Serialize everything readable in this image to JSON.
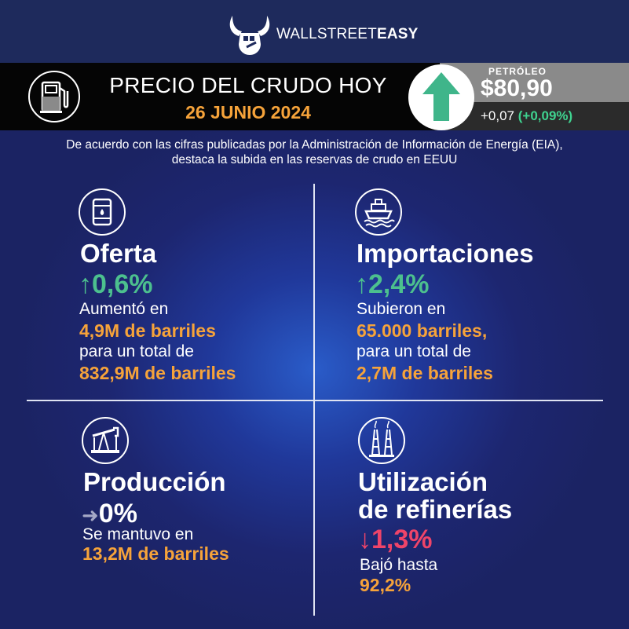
{
  "brand": {
    "name_light": "WALLSTREET",
    "name_bold": "EASY",
    "icon": "bull-fist-icon"
  },
  "header": {
    "title": "PRECIO DEL CRUDO HOY",
    "date": "26 JUNIO 2024",
    "icon": "fuel-pump-icon"
  },
  "price": {
    "label": "PETRÓLEO",
    "value": "$80,90",
    "change": "+0,07",
    "change_pct": "(+0,09%)",
    "trend_icon": "up-arrow-icon",
    "trend_color": "#3fb58a"
  },
  "intro": "De acuerdo con las cifras publicadas por la Administración de Información de Energía (EIA), destaca la subida en las reservas de crudo en EEUU",
  "quadrants": {
    "supply": {
      "icon": "oil-barrel-icon",
      "title": "Oferta",
      "arrow": "↑",
      "stat": "0,6%",
      "line1": "Aumentó en",
      "hl1": "4,9M de barriles",
      "line2": "para un total de",
      "hl2": "832,9M de barriles"
    },
    "imports": {
      "icon": "ship-icon",
      "title": "Importaciones",
      "arrow": "↑",
      "stat": "2,4%",
      "line1": "Subieron en",
      "hl1": "65.000 barriles,",
      "line2": "para un total de",
      "hl2": "2,7M de barriles"
    },
    "production": {
      "icon": "pumpjack-icon",
      "title": "Producción",
      "arrow": "➜",
      "stat": "0%",
      "line1": "Se mantuvo en",
      "hl1": "13,2M de barriles"
    },
    "refinery": {
      "icon": "refinery-icon",
      "title_line1": "Utilización",
      "title_line2": "de refinerías",
      "arrow": "↓",
      "stat": "1,3%",
      "line1": "Bajó hasta",
      "hl1": "92,2%"
    }
  },
  "colors": {
    "background": "#1c2466",
    "accent_orange": "#f6a33a",
    "up_green": "#4cc08e",
    "down_red": "#ef4469",
    "neutral_grey": "#a4a8c6"
  }
}
